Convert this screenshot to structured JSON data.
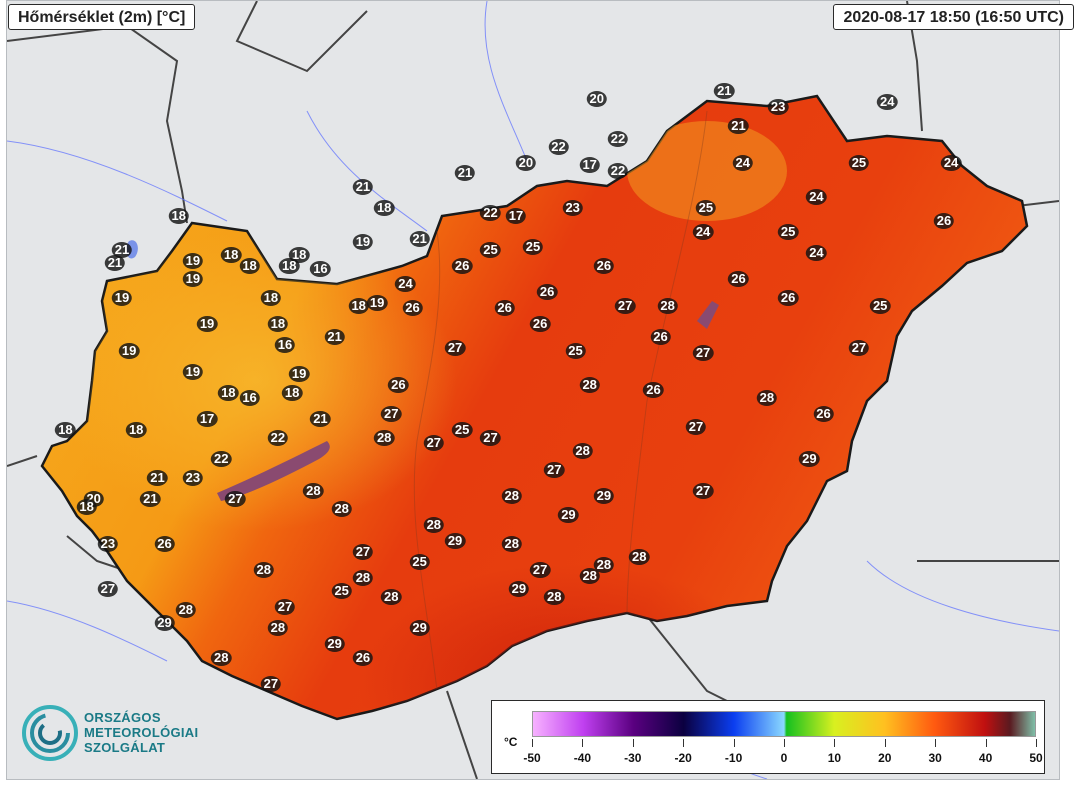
{
  "header": {
    "title": "Hőmérséklet (2m) [°C]",
    "timestamp": "2020-08-17 18:50 (16:50 UTC)"
  },
  "legend": {
    "unit": "°C",
    "ticks": [
      "-50",
      "-40",
      "-30",
      "-20",
      "-10",
      "0",
      "10",
      "20",
      "30",
      "40",
      "50"
    ]
  },
  "logo": {
    "line1": "ORSZÁGOS",
    "line2": "METEOROLÓGIAI",
    "line3": "SZOLGÁLAT"
  },
  "colors": {
    "cool": "#f5a91a",
    "mid": "#f06a10",
    "warm": "#e23010",
    "hot": "#c81a0c"
  },
  "stations": [
    {
      "v": "20",
      "lon": 19.55,
      "lat": 48.23
    },
    {
      "v": "21",
      "lon": 20.45,
      "lat": 48.26
    },
    {
      "v": "23",
      "lon": 20.83,
      "lat": 48.2
    },
    {
      "v": "24",
      "lon": 21.6,
      "lat": 48.22
    },
    {
      "v": "21",
      "lon": 20.55,
      "lat": 48.13
    },
    {
      "v": "22",
      "lon": 19.7,
      "lat": 48.08
    },
    {
      "v": "22",
      "lon": 19.28,
      "lat": 48.05
    },
    {
      "v": "24",
      "lon": 20.58,
      "lat": 47.99
    },
    {
      "v": "25",
      "lon": 21.4,
      "lat": 47.99
    },
    {
      "v": "24",
      "lon": 22.05,
      "lat": 47.99
    },
    {
      "v": "20",
      "lon": 19.05,
      "lat": 47.99
    },
    {
      "v": "17",
      "lon": 19.5,
      "lat": 47.98
    },
    {
      "v": "22",
      "lon": 19.7,
      "lat": 47.96
    },
    {
      "v": "21",
      "lon": 18.62,
      "lat": 47.95
    },
    {
      "v": "21",
      "lon": 17.9,
      "lat": 47.9
    },
    {
      "v": "18",
      "lon": 18.05,
      "lat": 47.82
    },
    {
      "v": "24",
      "lon": 21.1,
      "lat": 47.86
    },
    {
      "v": "22",
      "lon": 18.8,
      "lat": 47.8
    },
    {
      "v": "17",
      "lon": 18.98,
      "lat": 47.79
    },
    {
      "v": "23",
      "lon": 19.38,
      "lat": 47.82
    },
    {
      "v": "25",
      "lon": 20.32,
      "lat": 47.82
    },
    {
      "v": "26",
      "lon": 22.0,
      "lat": 47.77
    },
    {
      "v": "18",
      "lon": 16.6,
      "lat": 47.79
    },
    {
      "v": "24",
      "lon": 20.3,
      "lat": 47.73
    },
    {
      "v": "25",
      "lon": 20.9,
      "lat": 47.73
    },
    {
      "v": "21",
      "lon": 18.3,
      "lat": 47.7
    },
    {
      "v": "25",
      "lon": 18.8,
      "lat": 47.66
    },
    {
      "v": "25",
      "lon": 19.1,
      "lat": 47.67
    },
    {
      "v": "24",
      "lon": 21.1,
      "lat": 47.65
    },
    {
      "v": "21",
      "lon": 16.2,
      "lat": 47.66
    },
    {
      "v": "21",
      "lon": 16.15,
      "lat": 47.61
    },
    {
      "v": "19",
      "lon": 16.7,
      "lat": 47.62
    },
    {
      "v": "18",
      "lon": 17.45,
      "lat": 47.64
    },
    {
      "v": "19",
      "lon": 17.9,
      "lat": 47.69
    },
    {
      "v": "18",
      "lon": 16.97,
      "lat": 47.64
    },
    {
      "v": "18",
      "lon": 17.1,
      "lat": 47.6
    },
    {
      "v": "18",
      "lon": 17.38,
      "lat": 47.6
    },
    {
      "v": "16",
      "lon": 17.6,
      "lat": 47.59
    },
    {
      "v": "26",
      "lon": 18.6,
      "lat": 47.6
    },
    {
      "v": "26",
      "lon": 19.6,
      "lat": 47.6
    },
    {
      "v": "19",
      "lon": 16.7,
      "lat": 47.55
    },
    {
      "v": "24",
      "lon": 18.2,
      "lat": 47.53
    },
    {
      "v": "26",
      "lon": 20.55,
      "lat": 47.55
    },
    {
      "v": "26",
      "lon": 20.9,
      "lat": 47.48
    },
    {
      "v": "19",
      "lon": 16.2,
      "lat": 47.48
    },
    {
      "v": "18",
      "lon": 17.25,
      "lat": 47.48
    },
    {
      "v": "18",
      "lon": 17.87,
      "lat": 47.45
    },
    {
      "v": "19",
      "lon": 18.0,
      "lat": 47.46
    },
    {
      "v": "26",
      "lon": 18.25,
      "lat": 47.44
    },
    {
      "v": "26",
      "lon": 18.9,
      "lat": 47.44
    },
    {
      "v": "26",
      "lon": 19.2,
      "lat": 47.5
    },
    {
      "v": "27",
      "lon": 19.75,
      "lat": 47.45
    },
    {
      "v": "28",
      "lon": 20.05,
      "lat": 47.45
    },
    {
      "v": "25",
      "lon": 21.55,
      "lat": 47.45
    },
    {
      "v": "19",
      "lon": 16.8,
      "lat": 47.38
    },
    {
      "v": "18",
      "lon": 17.3,
      "lat": 47.38
    },
    {
      "v": "26",
      "lon": 19.15,
      "lat": 47.38
    },
    {
      "v": "21",
      "lon": 17.7,
      "lat": 47.33
    },
    {
      "v": "16",
      "lon": 17.35,
      "lat": 47.3
    },
    {
      "v": "26",
      "lon": 20.0,
      "lat": 47.33
    },
    {
      "v": "19",
      "lon": 16.25,
      "lat": 47.28
    },
    {
      "v": "27",
      "lon": 18.55,
      "lat": 47.29
    },
    {
      "v": "25",
      "lon": 19.4,
      "lat": 47.28
    },
    {
      "v": "27",
      "lon": 20.3,
      "lat": 47.27
    },
    {
      "v": "27",
      "lon": 21.4,
      "lat": 47.29
    },
    {
      "v": "19",
      "lon": 16.7,
      "lat": 47.2
    },
    {
      "v": "19",
      "lon": 17.45,
      "lat": 47.19
    },
    {
      "v": "18",
      "lon": 16.95,
      "lat": 47.12
    },
    {
      "v": "16",
      "lon": 17.1,
      "lat": 47.1
    },
    {
      "v": "18",
      "lon": 17.4,
      "lat": 47.12
    },
    {
      "v": "26",
      "lon": 18.15,
      "lat": 47.15
    },
    {
      "v": "28",
      "lon": 19.5,
      "lat": 47.15
    },
    {
      "v": "26",
      "lon": 19.95,
      "lat": 47.13
    },
    {
      "v": "28",
      "lon": 20.75,
      "lat": 47.1
    },
    {
      "v": "17",
      "lon": 16.8,
      "lat": 47.02
    },
    {
      "v": "21",
      "lon": 17.6,
      "lat": 47.02
    },
    {
      "v": "27",
      "lon": 18.1,
      "lat": 47.04
    },
    {
      "v": "26",
      "lon": 21.15,
      "lat": 47.04
    },
    {
      "v": "18",
      "lon": 15.8,
      "lat": 46.98
    },
    {
      "v": "18",
      "lon": 16.3,
      "lat": 46.98
    },
    {
      "v": "22",
      "lon": 17.3,
      "lat": 46.95
    },
    {
      "v": "25",
      "lon": 18.6,
      "lat": 46.98
    },
    {
      "v": "27",
      "lon": 20.25,
      "lat": 46.99
    },
    {
      "v": "28",
      "lon": 18.05,
      "lat": 46.95
    },
    {
      "v": "27",
      "lon": 18.4,
      "lat": 46.93
    },
    {
      "v": "27",
      "lon": 18.8,
      "lat": 46.95
    },
    {
      "v": "22",
      "lon": 16.9,
      "lat": 46.87
    },
    {
      "v": "28",
      "lon": 19.45,
      "lat": 46.9
    },
    {
      "v": "29",
      "lon": 21.05,
      "lat": 46.87
    },
    {
      "v": "21",
      "lon": 16.45,
      "lat": 46.8
    },
    {
      "v": "23",
      "lon": 16.7,
      "lat": 46.8
    },
    {
      "v": "27",
      "lon": 19.25,
      "lat": 46.83
    },
    {
      "v": "28",
      "lon": 17.55,
      "lat": 46.75
    },
    {
      "v": "27",
      "lon": 17.0,
      "lat": 46.72
    },
    {
      "v": "28",
      "lon": 18.95,
      "lat": 46.73
    },
    {
      "v": "29",
      "lon": 19.6,
      "lat": 46.73
    },
    {
      "v": "27",
      "lon": 20.3,
      "lat": 46.75
    },
    {
      "v": "20",
      "lon": 16.0,
      "lat": 46.72
    },
    {
      "v": "21",
      "lon": 16.4,
      "lat": 46.72
    },
    {
      "v": "18",
      "lon": 15.95,
      "lat": 46.69
    },
    {
      "v": "28",
      "lon": 17.75,
      "lat": 46.68
    },
    {
      "v": "29",
      "lon": 19.35,
      "lat": 46.66
    },
    {
      "v": "28",
      "lon": 18.4,
      "lat": 46.62
    },
    {
      "v": "29",
      "lon": 18.55,
      "lat": 46.56
    },
    {
      "v": "28",
      "lon": 18.95,
      "lat": 46.55
    },
    {
      "v": "23",
      "lon": 16.1,
      "lat": 46.55
    },
    {
      "v": "26",
      "lon": 16.5,
      "lat": 46.55
    },
    {
      "v": "27",
      "lon": 17.9,
      "lat": 46.52
    },
    {
      "v": "28",
      "lon": 19.85,
      "lat": 46.5
    },
    {
      "v": "25",
      "lon": 18.3,
      "lat": 46.48
    },
    {
      "v": "28",
      "lon": 17.2,
      "lat": 46.45
    },
    {
      "v": "28",
      "lon": 19.6,
      "lat": 46.47
    },
    {
      "v": "27",
      "lon": 19.15,
      "lat": 46.45
    },
    {
      "v": "28",
      "lon": 17.9,
      "lat": 46.42
    },
    {
      "v": "28",
      "lon": 19.5,
      "lat": 46.43
    },
    {
      "v": "25",
      "lon": 17.75,
      "lat": 46.37
    },
    {
      "v": "29",
      "lon": 19.0,
      "lat": 46.38
    },
    {
      "v": "27",
      "lon": 16.1,
      "lat": 46.38
    },
    {
      "v": "28",
      "lon": 18.1,
      "lat": 46.35
    },
    {
      "v": "28",
      "lon": 19.25,
      "lat": 46.35
    },
    {
      "v": "28",
      "lon": 16.65,
      "lat": 46.3
    },
    {
      "v": "27",
      "lon": 17.35,
      "lat": 46.31
    },
    {
      "v": "29",
      "lon": 16.5,
      "lat": 46.25
    },
    {
      "v": "29",
      "lon": 18.3,
      "lat": 46.23
    },
    {
      "v": "28",
      "lon": 17.3,
      "lat": 46.23
    },
    {
      "v": "29",
      "lon": 17.7,
      "lat": 46.17
    },
    {
      "v": "26",
      "lon": 17.9,
      "lat": 46.12
    },
    {
      "v": "28",
      "lon": 16.9,
      "lat": 46.12
    },
    {
      "v": "27",
      "lon": 17.25,
      "lat": 46.02
    }
  ]
}
